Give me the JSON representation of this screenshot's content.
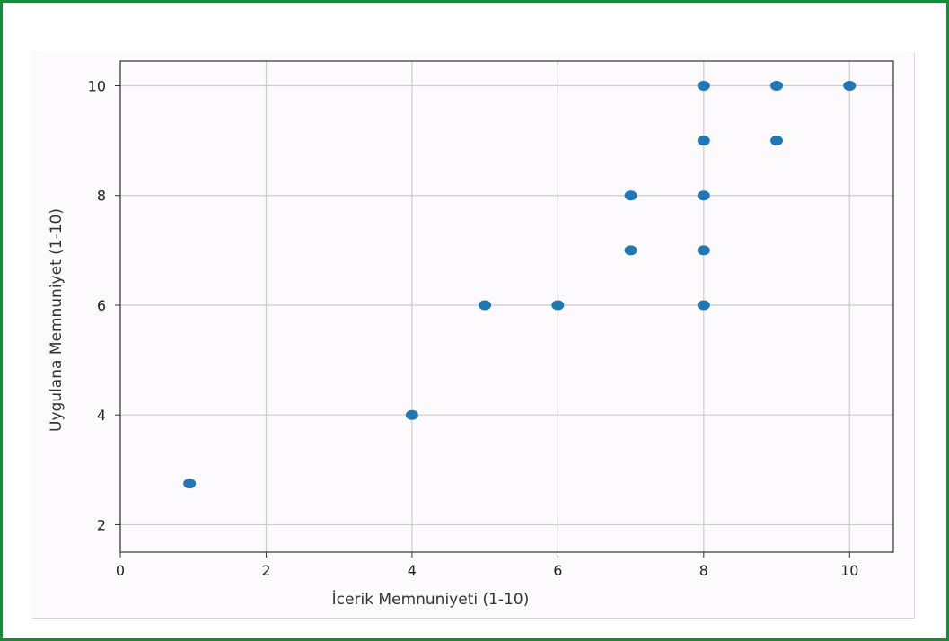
{
  "chart_data": {
    "type": "scatter",
    "title": "",
    "xlabel": "İcerik Memnuniyeti (1-10)",
    "ylabel": "Uygulana Memnuniyet (1-10)",
    "xlim": [
      0,
      10.6
    ],
    "ylim": [
      1.5,
      10.45
    ],
    "xticks": [
      0,
      2,
      4,
      6,
      8,
      10
    ],
    "yticks": [
      2,
      4,
      6,
      8,
      10
    ],
    "grid": true,
    "marker_color": "#1f77b4",
    "points": [
      {
        "x": 0.95,
        "y": 2.75
      },
      {
        "x": 4,
        "y": 4
      },
      {
        "x": 5,
        "y": 6
      },
      {
        "x": 6,
        "y": 6
      },
      {
        "x": 7,
        "y": 7
      },
      {
        "x": 7,
        "y": 8
      },
      {
        "x": 8,
        "y": 6
      },
      {
        "x": 8,
        "y": 7
      },
      {
        "x": 8,
        "y": 8
      },
      {
        "x": 8,
        "y": 9
      },
      {
        "x": 8,
        "y": 10
      },
      {
        "x": 9,
        "y": 9
      },
      {
        "x": 9,
        "y": 10
      },
      {
        "x": 10,
        "y": 10
      }
    ]
  }
}
